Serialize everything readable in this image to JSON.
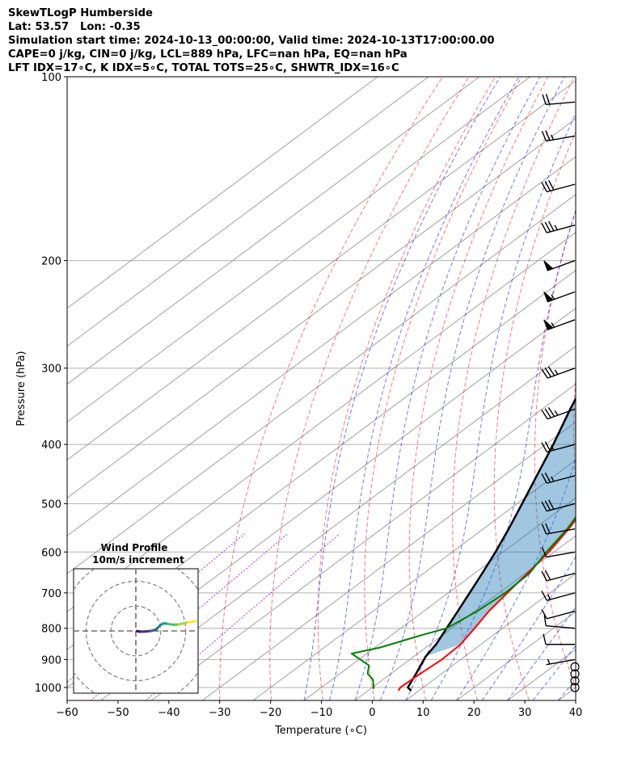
{
  "header": {
    "line1": "SkewTLogP Humberside",
    "line2": "Lat: 53.57   Lon: -0.35",
    "line3": "Simulation start time: 2024-10-13_00:00:00, Valid time: 2024-10-13T17:00:00.00",
    "line4": "CAPE=0 j/kg, CIN=0 j/kg, LCL=889 hPa, LFC=nan hPa, EQ=nan hPa",
    "line5": "LFT IDX=17∘C, K IDX=5∘C, TOTAL TOTS=25∘C, SHWTR_IDX=16∘C"
  },
  "inset": {
    "title": "Wind Profile",
    "subtitle": "10m/s increment"
  },
  "chart_data": {
    "type": "line",
    "subtype": "skew-T log-P",
    "xlabel": "Temperature (∘C)",
    "ylabel": "Pressure (hPa)",
    "xlim": [
      -60,
      40
    ],
    "ylim": [
      1050,
      100
    ],
    "yscale": "log",
    "x_ticks": [
      -60,
      -50,
      -40,
      -30,
      -20,
      -10,
      0,
      10,
      20,
      30,
      40
    ],
    "y_ticks": [
      100,
      200,
      300,
      400,
      500,
      600,
      700,
      800,
      900,
      1000
    ],
    "grid": true,
    "colors": {
      "temperature": "#ff0000",
      "dewpoint": "#008000",
      "parcel": "#000000",
      "cape_fill": "#1f77b4",
      "dry_adiabats": "#ff0000",
      "moist_adiabats": "#0000ff",
      "mixing_ratio": "#9400d3",
      "isotherms": "#808080"
    },
    "series": [
      {
        "id": "temperature",
        "points": [
          [
            1012,
            6.0
          ],
          [
            1000,
            5.5
          ],
          [
            950,
            5.8
          ],
          [
            900,
            6.3
          ],
          [
            850,
            6.0
          ],
          [
            800,
            4.5
          ],
          [
            750,
            2.8
          ],
          [
            700,
            1.6
          ],
          [
            650,
            0.4
          ],
          [
            600,
            -1.0
          ],
          [
            550,
            -3.2
          ],
          [
            500,
            -6.0
          ],
          [
            450,
            -7.5
          ],
          [
            420,
            -8.0
          ],
          [
            400,
            -9.5
          ],
          [
            350,
            -14.0
          ],
          [
            300,
            -19.5
          ],
          [
            250,
            -25.0
          ],
          [
            230,
            -29.0
          ],
          [
            200,
            -36.0
          ],
          [
            180,
            -37.0
          ],
          [
            170,
            -37.0
          ],
          [
            150,
            -40.0
          ],
          [
            140,
            -42.0
          ],
          [
            130,
            -44.0
          ],
          [
            120,
            -44.0
          ],
          [
            110,
            -44.5
          ],
          [
            100,
            -46.0
          ]
        ]
      },
      {
        "id": "dewpoint",
        "points": [
          [
            1005,
            0.5
          ],
          [
            1000,
            0.3
          ],
          [
            970,
            -2.0
          ],
          [
            950,
            -4.5
          ],
          [
            920,
            -6.5
          ],
          [
            880,
            -13.0
          ],
          [
            860,
            -9.0
          ],
          [
            820,
            -4.0
          ],
          [
            800,
            -1.0
          ],
          [
            750,
            0.5
          ],
          [
            700,
            1.2
          ],
          [
            650,
            0.8
          ],
          [
            600,
            -1.5
          ],
          [
            550,
            -3.5
          ],
          [
            500,
            -6.5
          ],
          [
            450,
            -7.0
          ],
          [
            400,
            -9.0
          ],
          [
            350,
            -14.0
          ],
          [
            300,
            -20.5
          ],
          [
            270,
            -24.0
          ],
          [
            250,
            -27.0
          ],
          [
            230,
            -31.0
          ],
          [
            200,
            -39.0
          ],
          [
            190,
            -44.0
          ],
          [
            180,
            -52.0
          ],
          [
            170,
            -57.0
          ],
          [
            160,
            -60.0
          ],
          [
            150,
            -61.0
          ],
          [
            140,
            -62.0
          ],
          [
            130,
            -63.0
          ],
          [
            120,
            -63.5
          ],
          [
            110,
            -64.0
          ],
          [
            100,
            -65.0
          ]
        ]
      },
      {
        "id": "parcel",
        "points": [
          [
            1012,
            8.5
          ],
          [
            1000,
            7.0
          ],
          [
            950,
            5.0
          ],
          [
            889,
            2.3
          ],
          [
            850,
            1.2
          ],
          [
            800,
            -1.0
          ],
          [
            750,
            -3.3
          ],
          [
            700,
            -5.8
          ],
          [
            650,
            -8.5
          ],
          [
            600,
            -11.5
          ],
          [
            550,
            -15.0
          ],
          [
            500,
            -19.0
          ],
          [
            450,
            -23.5
          ],
          [
            400,
            -28.5
          ],
          [
            350,
            -34.5
          ],
          [
            300,
            -41.0
          ],
          [
            250,
            -49.0
          ],
          [
            200,
            -58.0
          ],
          [
            150,
            -69.0
          ],
          [
            100,
            -84.0
          ]
        ]
      }
    ],
    "lcl_hpa": 889,
    "wind_barbs": {
      "description": "Wind barbs on right side at pressure levels",
      "levels": [
        1000,
        975,
        950,
        925,
        900,
        850,
        800,
        750,
        700,
        650,
        600,
        550,
        500,
        450,
        400,
        350,
        300,
        250,
        225,
        200,
        175,
        150,
        125,
        110
      ],
      "speeds_kt": [
        0,
        0,
        0,
        0,
        5,
        10,
        10,
        10,
        15,
        20,
        10,
        20,
        30,
        25,
        25,
        35,
        35,
        55,
        55,
        50,
        35,
        30,
        25,
        20
      ],
      "dirs_deg": [
        0,
        0,
        0,
        0,
        260,
        270,
        275,
        255,
        255,
        255,
        260,
        260,
        255,
        255,
        255,
        250,
        250,
        250,
        250,
        250,
        255,
        255,
        260,
        265
      ]
    },
    "hodograph": {
      "u": [
        0.5,
        1,
        2,
        4,
        6,
        8,
        9,
        10,
        11,
        12,
        13,
        15,
        17,
        19,
        21,
        23,
        24
      ],
      "v": [
        0,
        -0.2,
        -0.3,
        -0.2,
        0,
        0.5,
        1.5,
        2.5,
        3,
        3,
        2.8,
        2.5,
        2.6,
        3,
        3.5,
        3.8,
        4
      ],
      "rings_ms": [
        10,
        20,
        30
      ],
      "xlim": [
        -25,
        25
      ],
      "ylim": [
        -25,
        25
      ]
    }
  }
}
